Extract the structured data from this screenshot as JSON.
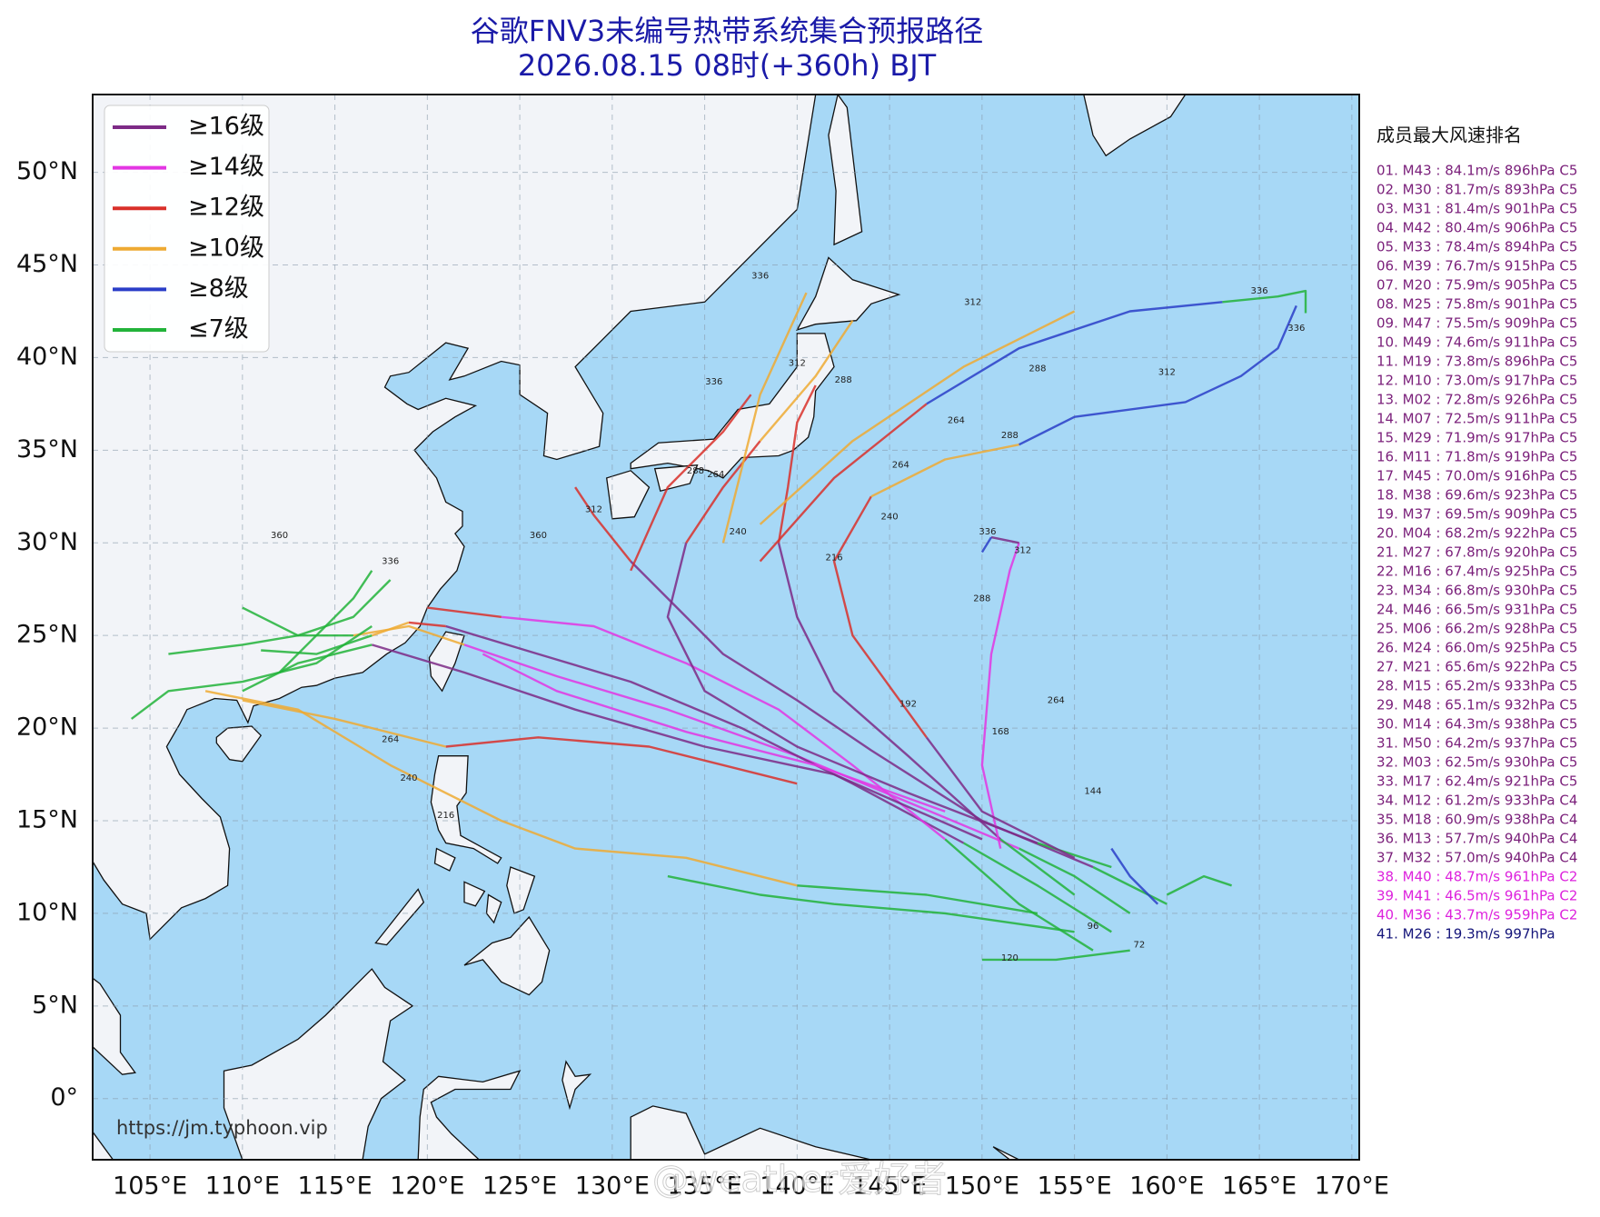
{
  "header": {
    "title": "谷歌FNV3未编号热带系统集合预报路径",
    "subtitle": "2026.08.15 08时(+360h) BJT"
  },
  "map": {
    "lon_range": [
      101.9,
      170.4
    ],
    "lat_range": [
      -3.3,
      54.2
    ],
    "lon_ticks": [
      {
        "value": 105,
        "label": "105°E"
      },
      {
        "value": 110,
        "label": "110°E"
      },
      {
        "value": 115,
        "label": "115°E"
      },
      {
        "value": 120,
        "label": "120°E"
      },
      {
        "value": 125,
        "label": "125°E"
      },
      {
        "value": 130,
        "label": "130°E"
      },
      {
        "value": 135,
        "label": "135°E"
      },
      {
        "value": 140,
        "label": "140°E"
      },
      {
        "value": 145,
        "label": "145°E"
      },
      {
        "value": 150,
        "label": "150°E"
      },
      {
        "value": 155,
        "label": "155°E"
      },
      {
        "value": 160,
        "label": "160°E"
      },
      {
        "value": 165,
        "label": "165°E"
      },
      {
        "value": 170,
        "label": "170°E"
      }
    ],
    "lat_ticks": [
      {
        "value": 0,
        "label": "0°"
      },
      {
        "value": 5,
        "label": "5°N"
      },
      {
        "value": 10,
        "label": "10°N"
      },
      {
        "value": 15,
        "label": "15°N"
      },
      {
        "value": 20,
        "label": "20°N"
      },
      {
        "value": 25,
        "label": "25°N"
      },
      {
        "value": 30,
        "label": "30°N"
      },
      {
        "value": 35,
        "label": "35°N"
      },
      {
        "value": 40,
        "label": "40°N"
      },
      {
        "value": 45,
        "label": "45°N"
      },
      {
        "value": 50,
        "label": "50°N"
      }
    ],
    "grid": true
  },
  "legend": {
    "items": [
      {
        "label": "≥16级",
        "color": "#7d2a86"
      },
      {
        "label": "≥14级",
        "color": "#e336e3"
      },
      {
        "label": "≥12级",
        "color": "#d9302a"
      },
      {
        "label": "≥10级",
        "color": "#eeaa33"
      },
      {
        "label": "≥8级",
        "color": "#2a3ec8"
      },
      {
        "label": "≤7级",
        "color": "#22b33a"
      }
    ]
  },
  "tracks": [
    {
      "color": "#22b33a",
      "lon": [
        158,
        155,
        152
      ],
      "lat": [
        10,
        12,
        13.5
      ]
    },
    {
      "color": "#e336e3",
      "lon": [
        152,
        146,
        140,
        133,
        127,
        122
      ],
      "lat": [
        13.5,
        16,
        18.5,
        21,
        22.8,
        24.5
      ]
    },
    {
      "color": "#eeaa33",
      "lon": [
        122,
        119,
        116
      ],
      "lat": [
        24.5,
        25.5,
        25
      ]
    },
    {
      "color": "#22b33a",
      "lon": [
        116,
        113,
        110
      ],
      "lat": [
        25,
        25,
        26.5
      ]
    },
    {
      "color": "#22b33a",
      "lon": [
        157,
        153,
        149
      ],
      "lat": [
        9,
        11.5,
        13.8
      ]
    },
    {
      "color": "#7d2a86",
      "lon": [
        149,
        143,
        137,
        131,
        126,
        121
      ],
      "lat": [
        13.8,
        17,
        20,
        22.5,
        24,
        25.5
      ]
    },
    {
      "color": "#d9302a",
      "lon": [
        121,
        119
      ],
      "lat": [
        25.5,
        25.7
      ]
    },
    {
      "color": "#eeaa33",
      "lon": [
        119,
        117
      ],
      "lat": [
        25.7,
        25
      ]
    },
    {
      "color": "#22b33a",
      "lon": [
        117,
        114,
        111
      ],
      "lat": [
        25,
        24,
        24.2
      ]
    },
    {
      "color": "#22b33a",
      "lon": [
        156,
        152,
        148
      ],
      "lat": [
        8,
        10.5,
        14
      ]
    },
    {
      "color": "#e336e3",
      "lon": [
        148,
        143,
        139,
        134,
        129,
        124
      ],
      "lat": [
        14,
        18,
        21,
        23.5,
        25.5,
        26
      ]
    },
    {
      "color": "#d9302a",
      "lon": [
        124,
        120
      ],
      "lat": [
        26,
        26.5
      ]
    },
    {
      "color": "#22b33a",
      "lon": [
        160,
        156
      ],
      "lat": [
        10.5,
        12.5
      ]
    },
    {
      "color": "#7d2a86",
      "lon": [
        156,
        150,
        144,
        140,
        136,
        133,
        131
      ],
      "lat": [
        12.5,
        15,
        18.8,
        21.5,
        24,
        27,
        29
      ]
    },
    {
      "color": "#d9302a",
      "lon": [
        131,
        129,
        128
      ],
      "lat": [
        29,
        31.5,
        33
      ]
    },
    {
      "color": "#22b33a",
      "lon": [
        155,
        151
      ],
      "lat": [
        11,
        14
      ]
    },
    {
      "color": "#7d2a86",
      "lon": [
        151,
        146,
        142,
        140,
        139
      ],
      "lat": [
        14,
        18.5,
        22,
        26,
        30
      ]
    },
    {
      "color": "#d9302a",
      "lon": [
        139,
        139.5,
        140,
        141
      ],
      "lat": [
        30,
        33,
        36.5,
        38.5
      ]
    },
    {
      "color": "#e336e3",
      "lon": [
        151,
        150,
        150.5,
        151.5,
        152
      ],
      "lat": [
        13.5,
        18,
        24,
        28.5,
        30
      ]
    },
    {
      "color": "#7d2a86",
      "lon": [
        152,
        150.5
      ],
      "lat": [
        30,
        30.3
      ]
    },
    {
      "color": "#2a3ec8",
      "lon": [
        150.5,
        150
      ],
      "lat": [
        30.3,
        29.5
      ]
    },
    {
      "color": "#22b33a",
      "lon": [
        157,
        153
      ],
      "lat": [
        12.5,
        13.8
      ]
    },
    {
      "color": "#7d2a86",
      "lon": [
        153,
        146,
        140,
        135,
        133,
        134
      ],
      "lat": [
        13.8,
        16.5,
        19,
        22,
        26,
        30
      ]
    },
    {
      "color": "#d9302a",
      "lon": [
        134,
        136,
        138
      ],
      "lat": [
        30,
        33,
        35.5
      ]
    },
    {
      "color": "#eeaa33",
      "lon": [
        138,
        141,
        143
      ],
      "lat": [
        35.5,
        39,
        42
      ]
    },
    {
      "color": "#7d2a86",
      "lon": [
        155,
        150,
        147
      ],
      "lat": [
        13,
        15.5,
        19.5
      ]
    },
    {
      "color": "#d9302a",
      "lon": [
        147,
        143,
        142,
        144
      ],
      "lat": [
        19.5,
        25,
        29,
        32.5
      ]
    },
    {
      "color": "#eeaa33",
      "lon": [
        144,
        148,
        152
      ],
      "lat": [
        32.5,
        34.5,
        35.3
      ]
    },
    {
      "color": "#2a3ec8",
      "lon": [
        152,
        155,
        161,
        164,
        166,
        167
      ],
      "lat": [
        35.3,
        36.8,
        37.6,
        39,
        40.5,
        42.8
      ]
    },
    {
      "color": "#d9302a",
      "lon": [
        138,
        142,
        147
      ],
      "lat": [
        29,
        33.5,
        37.5
      ]
    },
    {
      "color": "#2a3ec8",
      "lon": [
        147,
        152,
        158,
        163
      ],
      "lat": [
        37.5,
        40.5,
        42.5,
        43
      ]
    },
    {
      "color": "#22b33a",
      "lon": [
        163,
        166,
        167.5,
        167.5
      ],
      "lat": [
        43,
        43.3,
        43.6,
        42.4
      ]
    },
    {
      "color": "#eeaa33",
      "lon": [
        138,
        143,
        149,
        155
      ],
      "lat": [
        31,
        35.5,
        39.5,
        42.5
      ]
    },
    {
      "color": "#22b33a",
      "lon": [
        153,
        147,
        140
      ],
      "lat": [
        10,
        11,
        11.5
      ]
    },
    {
      "color": "#eeaa33",
      "lon": [
        140,
        134,
        128,
        124,
        118,
        113,
        108
      ],
      "lat": [
        11.5,
        13,
        13.5,
        15,
        18,
        21,
        22
      ]
    },
    {
      "color": "#22b33a",
      "lon": [
        155,
        148,
        142,
        138,
        133
      ],
      "lat": [
        9,
        10,
        10.5,
        11,
        12
      ]
    },
    {
      "color": "#7d2a86",
      "lon": [
        150,
        142,
        135,
        128,
        122,
        117
      ],
      "lat": [
        14,
        17.5,
        19,
        21,
        23,
        24.5
      ]
    },
    {
      "color": "#22b33a",
      "lon": [
        117,
        113,
        110
      ],
      "lat": [
        24.5,
        23.5,
        22
      ]
    },
    {
      "color": "#e336e3",
      "lon": [
        148,
        141,
        134,
        127,
        123
      ],
      "lat": [
        15.5,
        18,
        19.8,
        22,
        24
      ]
    },
    {
      "color": "#d9302a",
      "lon": [
        140,
        132,
        126,
        121
      ],
      "lat": [
        17,
        19,
        19.5,
        19
      ]
    },
    {
      "color": "#eeaa33",
      "lon": [
        121,
        115,
        110
      ],
      "lat": [
        19,
        20.5,
        21.5
      ]
    },
    {
      "color": "#22b33a",
      "lon": [
        104,
        106,
        110,
        114,
        117
      ],
      "lat": [
        20.5,
        22,
        22.5,
        23.5,
        25.5
      ]
    },
    {
      "color": "#22b33a",
      "lon": [
        112,
        114,
        116,
        117
      ],
      "lat": [
        23,
        25,
        27,
        28.5
      ]
    },
    {
      "color": "#22b33a",
      "lon": [
        118,
        116,
        113,
        110,
        106
      ],
      "lat": [
        28,
        26,
        25,
        24.5,
        24
      ]
    },
    {
      "color": "#eeaa33",
      "lon": [
        136,
        137,
        138,
        140.5
      ],
      "lat": [
        30,
        34,
        38,
        43.5
      ]
    },
    {
      "color": "#d9302a",
      "lon": [
        131,
        133,
        136,
        137.5
      ],
      "lat": [
        28.5,
        33,
        36,
        38
      ]
    },
    {
      "color": "#22b33a",
      "lon": [
        158,
        154,
        150
      ],
      "lat": [
        8,
        7.5,
        7.5
      ]
    },
    {
      "color": "#22b33a",
      "lon": [
        160,
        162,
        163.5
      ],
      "lat": [
        11,
        12,
        11.5
      ]
    },
    {
      "color": "#2a3ec8",
      "lon": [
        159.5,
        158,
        157
      ],
      "lat": [
        10.5,
        12,
        13.5
      ]
    }
  ],
  "hour_labels": [
    {
      "text": "336",
      "lon": 138,
      "lat": 44.4
    },
    {
      "text": "336",
      "lon": 165,
      "lat": 43.6
    },
    {
      "text": "336",
      "lon": 167,
      "lat": 41.6
    },
    {
      "text": "336",
      "lon": 150.3,
      "lat": 30.6
    },
    {
      "text": "336",
      "lon": 118,
      "lat": 29
    },
    {
      "text": "336",
      "lon": 135.5,
      "lat": 38.7
    },
    {
      "text": "312",
      "lon": 149.5,
      "lat": 43
    },
    {
      "text": "312",
      "lon": 160,
      "lat": 39.2
    },
    {
      "text": "312",
      "lon": 140,
      "lat": 39.7
    },
    {
      "text": "312",
      "lon": 129,
      "lat": 31.8
    },
    {
      "text": "312",
      "lon": 152.2,
      "lat": 29.6
    },
    {
      "text": "288",
      "lon": 153,
      "lat": 39.4
    },
    {
      "text": "288",
      "lon": 151.5,
      "lat": 35.8
    },
    {
      "text": "288",
      "lon": 142.5,
      "lat": 38.8
    },
    {
      "text": "288",
      "lon": 134.5,
      "lat": 33.9
    },
    {
      "text": "288",
      "lon": 150,
      "lat": 27
    },
    {
      "text": "264",
      "lon": 148.6,
      "lat": 36.6
    },
    {
      "text": "264",
      "lon": 145.6,
      "lat": 34.2
    },
    {
      "text": "264",
      "lon": 135.6,
      "lat": 33.7
    },
    {
      "text": "264",
      "lon": 154,
      "lat": 21.5
    },
    {
      "text": "240",
      "lon": 145,
      "lat": 31.4
    },
    {
      "text": "240",
      "lon": 136.8,
      "lat": 30.6
    },
    {
      "text": "216",
      "lon": 142,
      "lat": 29.2
    },
    {
      "text": "192",
      "lon": 146,
      "lat": 21.3
    },
    {
      "text": "168",
      "lon": 151,
      "lat": 19.8
    },
    {
      "text": "144",
      "lon": 156,
      "lat": 16.6
    },
    {
      "text": "120",
      "lon": 151.5,
      "lat": 7.6
    },
    {
      "text": "96",
      "lon": 156,
      "lat": 9.3
    },
    {
      "text": "72",
      "lon": 158.5,
      "lat": 8.3
    },
    {
      "text": "360",
      "lon": 126,
      "lat": 30.4
    },
    {
      "text": "360",
      "lon": 112,
      "lat": 30.4
    },
    {
      "text": "264",
      "lon": 118,
      "lat": 19.4
    },
    {
      "text": "240",
      "lon": 119,
      "lat": 17.3
    },
    {
      "text": "216",
      "lon": 121,
      "lat": 15.3
    }
  ],
  "ranking": {
    "title": "成员最大风速排名",
    "items": [
      {
        "text": "01. M43 : 84.1m/s 896hPa C5",
        "color": "#7a1f7a"
      },
      {
        "text": "02. M30 : 81.7m/s 893hPa C5",
        "color": "#7a1f7a"
      },
      {
        "text": "03. M31 : 81.4m/s 901hPa C5",
        "color": "#7a1f7a"
      },
      {
        "text": "04. M42 : 80.4m/s 906hPa C5",
        "color": "#7a1f7a"
      },
      {
        "text": "05. M33 : 78.4m/s 894hPa C5",
        "color": "#7a1f7a"
      },
      {
        "text": "06. M39 : 76.7m/s 915hPa C5",
        "color": "#7a1f7a"
      },
      {
        "text": "07. M20 : 75.9m/s 905hPa C5",
        "color": "#7a1f7a"
      },
      {
        "text": "08. M25 : 75.8m/s 901hPa C5",
        "color": "#7a1f7a"
      },
      {
        "text": "09. M47 : 75.5m/s 909hPa C5",
        "color": "#7a1f7a"
      },
      {
        "text": "10. M49 : 74.6m/s 911hPa C5",
        "color": "#7a1f7a"
      },
      {
        "text": "11. M19 : 73.8m/s 896hPa C5",
        "color": "#7a1f7a"
      },
      {
        "text": "12. M10 : 73.0m/s 917hPa C5",
        "color": "#7a1f7a"
      },
      {
        "text": "13. M02 : 72.8m/s 926hPa C5",
        "color": "#7a1f7a"
      },
      {
        "text": "14. M07 : 72.5m/s 911hPa C5",
        "color": "#7a1f7a"
      },
      {
        "text": "15. M29 : 71.9m/s 917hPa C5",
        "color": "#7a1f7a"
      },
      {
        "text": "16. M11 : 71.8m/s 919hPa C5",
        "color": "#7a1f7a"
      },
      {
        "text": "17. M45 : 70.0m/s 916hPa C5",
        "color": "#7a1f7a"
      },
      {
        "text": "18. M38 : 69.6m/s 923hPa C5",
        "color": "#7a1f7a"
      },
      {
        "text": "19. M37 : 69.5m/s 909hPa C5",
        "color": "#7a1f7a"
      },
      {
        "text": "20. M04 : 68.2m/s 922hPa C5",
        "color": "#7a1f7a"
      },
      {
        "text": "21. M27 : 67.8m/s 920hPa C5",
        "color": "#7a1f7a"
      },
      {
        "text": "22. M16 : 67.4m/s 925hPa C5",
        "color": "#7a1f7a"
      },
      {
        "text": "23. M34 : 66.8m/s 930hPa C5",
        "color": "#7a1f7a"
      },
      {
        "text": "24. M46 : 66.5m/s 931hPa C5",
        "color": "#7a1f7a"
      },
      {
        "text": "25. M06 : 66.2m/s 928hPa C5",
        "color": "#7a1f7a"
      },
      {
        "text": "26. M24 : 66.0m/s 925hPa C5",
        "color": "#7a1f7a"
      },
      {
        "text": "27. M21 : 65.6m/s 922hPa C5",
        "color": "#7a1f7a"
      },
      {
        "text": "28. M15 : 65.2m/s 933hPa C5",
        "color": "#7a1f7a"
      },
      {
        "text": "29. M48 : 65.1m/s 932hPa C5",
        "color": "#7a1f7a"
      },
      {
        "text": "30. M14 : 64.3m/s 938hPa C5",
        "color": "#7a1f7a"
      },
      {
        "text": "31. M50 : 64.2m/s 937hPa C5",
        "color": "#7a1f7a"
      },
      {
        "text": "32. M03 : 62.5m/s 930hPa C5",
        "color": "#7a1f7a"
      },
      {
        "text": "33. M17 : 62.4m/s 921hPa C5",
        "color": "#7a1f7a"
      },
      {
        "text": "34. M12 : 61.2m/s 933hPa C4",
        "color": "#7a1f7a"
      },
      {
        "text": "35. M18 : 60.9m/s 938hPa C4",
        "color": "#7a1f7a"
      },
      {
        "text": "36. M13 : 57.7m/s 940hPa C4",
        "color": "#7a1f7a"
      },
      {
        "text": "37. M32 : 57.0m/s 940hPa C4",
        "color": "#7a1f7a"
      },
      {
        "text": "38. M40 : 48.7m/s 961hPa C2",
        "color": "#dd22dd"
      },
      {
        "text": "39. M41 : 46.5m/s 961hPa C2",
        "color": "#dd22dd"
      },
      {
        "text": "40. M36 : 43.7m/s 959hPa C2",
        "color": "#dd22dd"
      },
      {
        "text": "41. M26 : 19.3m/s 997hPa",
        "color": "#14147a"
      }
    ]
  },
  "footer": {
    "source": "https://jm.typhoon.vip",
    "watermark": "@weather爱好者"
  }
}
